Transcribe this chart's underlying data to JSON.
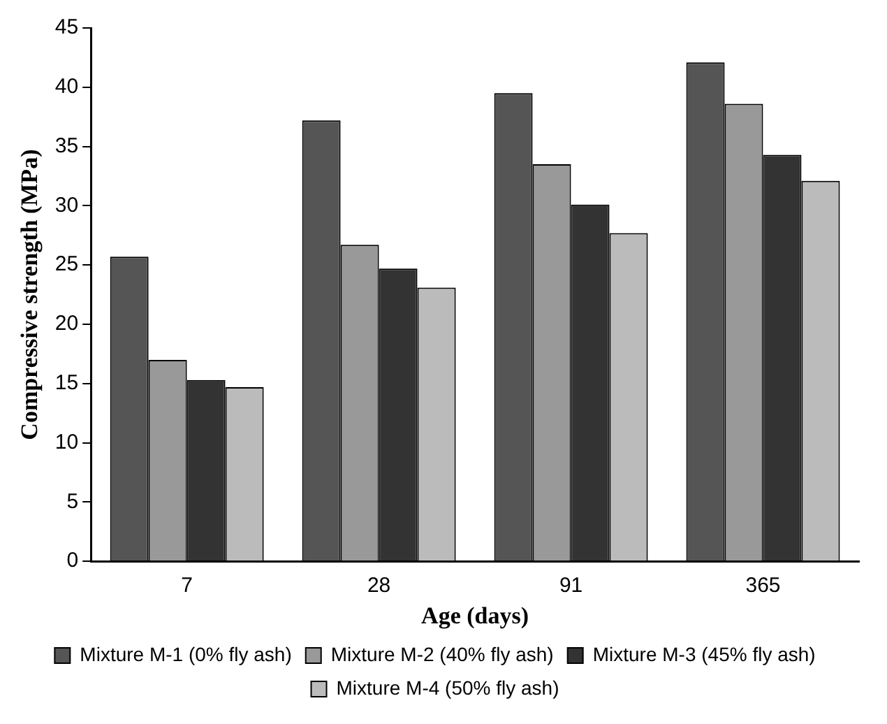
{
  "chart_data": {
    "type": "bar",
    "xlabel": "Age (days)",
    "ylabel": "Compressive strength (MPa)",
    "categories": [
      "7",
      "28",
      "91",
      "365"
    ],
    "series": [
      {
        "name": "Mixture M-1 (0% fly ash)",
        "color": "#555555",
        "values": [
          25.7,
          37.2,
          39.5,
          42.1
        ]
      },
      {
        "name": "Mixture M-2 (40% fly ash)",
        "color": "#999999",
        "values": [
          17.0,
          26.7,
          33.5,
          38.6
        ]
      },
      {
        "name": "Mixture M-3 (45% fly ash)",
        "color": "#333333",
        "values": [
          15.3,
          24.7,
          30.1,
          34.3
        ]
      },
      {
        "name": "Mixture M-4 (50% fly ash)",
        "color": "#bbbbbb",
        "values": [
          14.7,
          23.1,
          27.7,
          32.1
        ]
      }
    ],
    "ylim": [
      0,
      45
    ],
    "yticks": [
      0,
      5,
      10,
      15,
      20,
      25,
      30,
      35,
      40,
      45
    ],
    "grid": false,
    "legend": "bottom"
  }
}
